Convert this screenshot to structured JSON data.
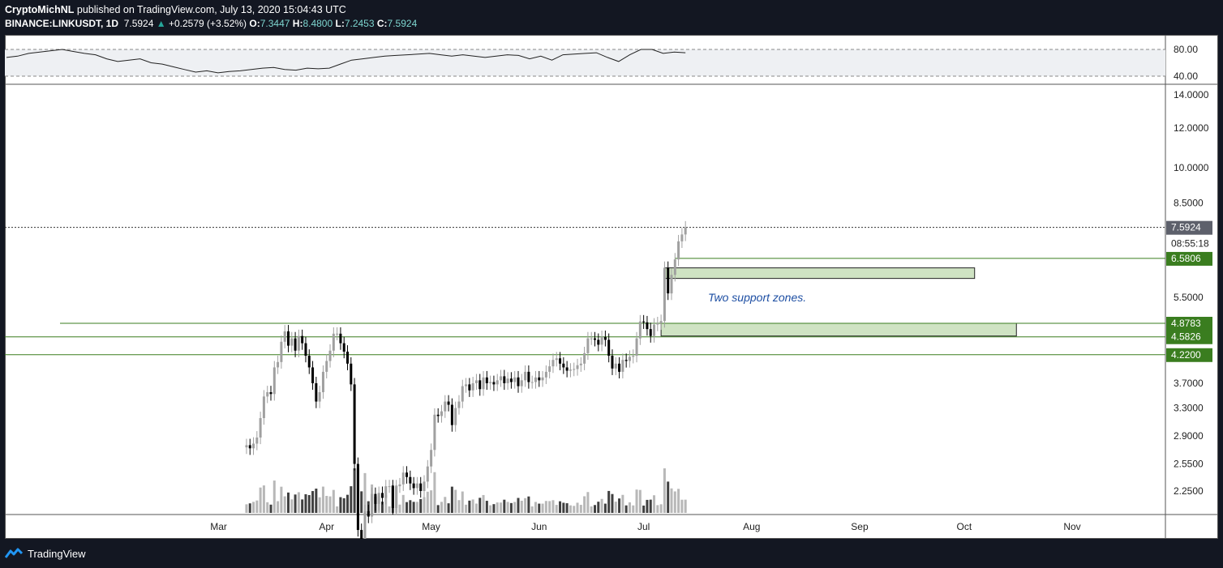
{
  "header": {
    "author": "CryptoMichNL",
    "published": "published on TradingView.com, July 13, 2020 15:04:43 UTC",
    "symbol": "BINANCE:LINKUSDT, 1D",
    "last": "7.5924",
    "change": "+0.2579 (+3.52%)",
    "o_label": "O:",
    "o": "7.3447",
    "h_label": "H:",
    "h": "8.4800",
    "l_label": "L:",
    "l": "7.2453",
    "c_label": "C:",
    "c": "7.5924"
  },
  "footer": {
    "brand": "TradingView"
  },
  "colors": {
    "up": "#a0a0a0",
    "down": "#000000",
    "level": "#3a7d1f",
    "zone": "#cfe3c3",
    "annotation": "#1e4fa3"
  },
  "chart_data": {
    "type": "candlestick",
    "scale": "log",
    "price_ticks": [
      "14.0000",
      "12.0000",
      "10.0000",
      "8.5000",
      "5.5000",
      "3.7000",
      "3.3000",
      "2.9000",
      "2.5500",
      "2.2500"
    ],
    "rsi_ticks": [
      "80.00",
      "40.00"
    ],
    "x_ticks": [
      "Mar",
      "Apr",
      "May",
      "Jun",
      "Jul",
      "Aug",
      "Sep",
      "Oct",
      "Nov"
    ],
    "current_price": "7.5924",
    "countdown": "08:55:18",
    "levels": [
      {
        "price": 6.5806,
        "label": "6.5806"
      },
      {
        "price": 4.8783,
        "label": "4.8783"
      },
      {
        "price": 4.5826,
        "label": "4.5826"
      },
      {
        "price": 4.22,
        "label": "4.2200"
      }
    ],
    "zones": [
      {
        "from_date": "2020-07-07",
        "to_date": "2020-10-04",
        "low": 6.0,
        "high": 6.3
      },
      {
        "from_date": "2020-07-06",
        "to_date": "2020-10-16",
        "low": 4.6,
        "high": 4.8783
      }
    ],
    "annotation": "Two support zones.",
    "closes": [
      2.78,
      2.74,
      2.8,
      2.88,
      3.15,
      3.48,
      3.55,
      3.52,
      3.98,
      4.08,
      4.48,
      4.7,
      4.4,
      4.55,
      4.3,
      4.6,
      4.45,
      4.2,
      3.98,
      3.7,
      3.4,
      3.55,
      3.9,
      4.1,
      4.3,
      4.65,
      4.65,
      4.45,
      4.28,
      4.05,
      3.68,
      2.55,
      1.88,
      1.75,
      2.05,
      2.0,
      2.22,
      2.12,
      2.23,
      2.18,
      2.3,
      2.3,
      2.08,
      2.3,
      2.32,
      2.45,
      2.4,
      2.33,
      2.28,
      2.33,
      2.25,
      2.35,
      2.52,
      2.72,
      3.2,
      3.18,
      3.25,
      3.4,
      3.35,
      3.05,
      3.3,
      3.4,
      3.65,
      3.68,
      3.58,
      3.7,
      3.75,
      3.6,
      3.8,
      3.7,
      3.72,
      3.68,
      3.75,
      3.82,
      3.7,
      3.78,
      3.72,
      3.8,
      3.65,
      3.75,
      3.9,
      3.72,
      3.72,
      3.8,
      3.75,
      3.8,
      3.9,
      4.0,
      4.12,
      4.15,
      4.05,
      3.98,
      3.92,
      3.94,
      3.95,
      4.02,
      4.05,
      4.25,
      4.55,
      4.55,
      4.52,
      4.42,
      4.58,
      4.52,
      4.2,
      3.96,
      4.05,
      3.9,
      4.12,
      4.1,
      4.18,
      4.2,
      4.55,
      4.92,
      4.9,
      4.75,
      4.6,
      4.85,
      4.88,
      4.93,
      6.3,
      5.6,
      6.1,
      6.55,
      7.12,
      7.35,
      7.59
    ],
    "rsi": [
      68,
      70,
      74,
      76,
      78,
      80,
      77,
      74,
      72,
      66,
      62,
      64,
      66,
      60,
      58,
      54,
      50,
      46,
      48,
      45,
      47,
      48,
      50,
      52,
      53,
      50,
      49,
      52,
      51,
      52,
      58,
      64,
      66,
      68,
      70,
      71,
      72,
      73,
      74,
      72,
      70,
      72,
      70,
      68,
      70,
      72,
      71,
      66,
      70,
      64,
      72,
      73,
      74,
      75,
      68,
      62,
      72,
      80,
      80,
      74,
      76,
      75
    ]
  }
}
